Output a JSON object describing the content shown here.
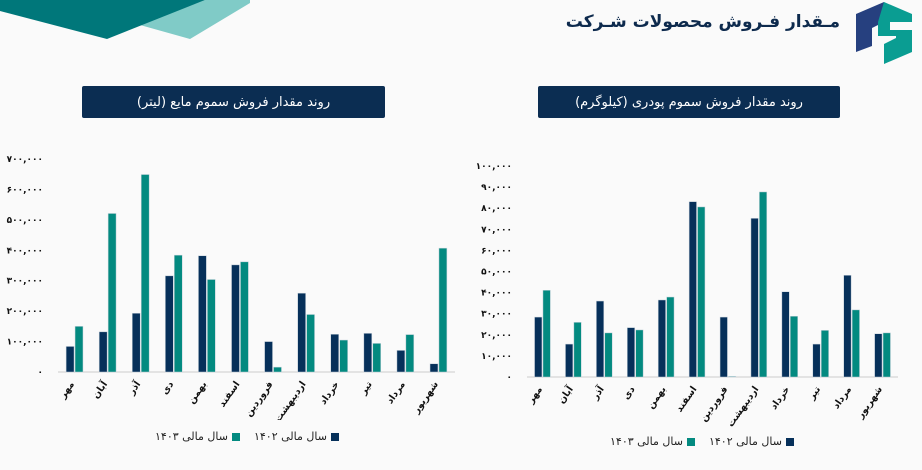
{
  "header": {
    "title": "مـقدار فـروش محصولات شـرکت"
  },
  "colors": {
    "series_1402": "#06305a",
    "series_1403": "#038a80",
    "title_bg": "#0b2d52",
    "deco_dark": "#00777a",
    "deco_light": "#80cbc7"
  },
  "chart_data": [
    {
      "type": "bar",
      "title": "روند مقدار فروش سموم مایع (لیتر)",
      "categories": [
        "مهر",
        "آبان",
        "آذر",
        "دی",
        "بهمن",
        "اسفند",
        "فروردین",
        "اردیبهشت",
        "خرداد",
        "تیر",
        "مرداد",
        "شهریور"
      ],
      "ylim": [
        0,
        700000
      ],
      "yticks": [
        0,
        100000,
        200000,
        300000,
        400000,
        500000,
        600000,
        700000
      ],
      "ytick_labels": [
        "۰",
        "۱۰۰,۰۰۰",
        "۲۰۰,۰۰۰",
        "۳۰۰,۰۰۰",
        "۴۰۰,۰۰۰",
        "۵۰۰,۰۰۰",
        "۶۰۰,۰۰۰",
        "۷۰۰,۰۰۰"
      ],
      "legend_position": "bottom",
      "grid": false,
      "series": [
        {
          "name": "سال مالی ۱۴۰۲",
          "values": [
            84000,
            132000,
            193000,
            316000,
            382000,
            352000,
            100000,
            259000,
            124000,
            127000,
            71000,
            27000
          ]
        },
        {
          "name": "سال مالی ۱۴۰۳",
          "values": [
            150000,
            521000,
            649000,
            384000,
            304000,
            362000,
            16000,
            189000,
            105000,
            94000,
            123000,
            407000
          ]
        }
      ]
    },
    {
      "type": "bar",
      "title": "روند مقدار فروش سموم پودری (کیلوگرم)",
      "categories": [
        "مهر",
        "آبان",
        "آذر",
        "دی",
        "بهمن",
        "اسفند",
        "فروردین",
        "اردیبهشت",
        "خرداد",
        "تیر",
        "مرداد",
        "شهریور"
      ],
      "ylim": [
        0,
        100000
      ],
      "yticks": [
        0,
        10000,
        20000,
        30000,
        40000,
        50000,
        60000,
        70000,
        80000,
        90000,
        100000
      ],
      "ytick_labels": [
        "۰",
        "۱۰,۰۰۰",
        "۲۰,۰۰۰",
        "۳۰,۰۰۰",
        "۴۰,۰۰۰",
        "۵۰,۰۰۰",
        "۶۰,۰۰۰",
        "۷۰,۰۰۰",
        "۸۰,۰۰۰",
        "۹۰,۰۰۰",
        "۱۰۰,۰۰۰"
      ],
      "legend_position": "bottom",
      "grid": false,
      "series": [
        {
          "name": "سال مالی ۱۴۰۲",
          "values": [
            28400,
            15600,
            36000,
            23400,
            36500,
            83100,
            28400,
            75200,
            40400,
            15600,
            48200,
            20500
          ]
        },
        {
          "name": "سال مالی ۱۴۰۳",
          "values": [
            41100,
            25900,
            20900,
            22300,
            37900,
            80600,
            300,
            87700,
            28800,
            22100,
            31800,
            20900
          ]
        }
      ]
    }
  ]
}
